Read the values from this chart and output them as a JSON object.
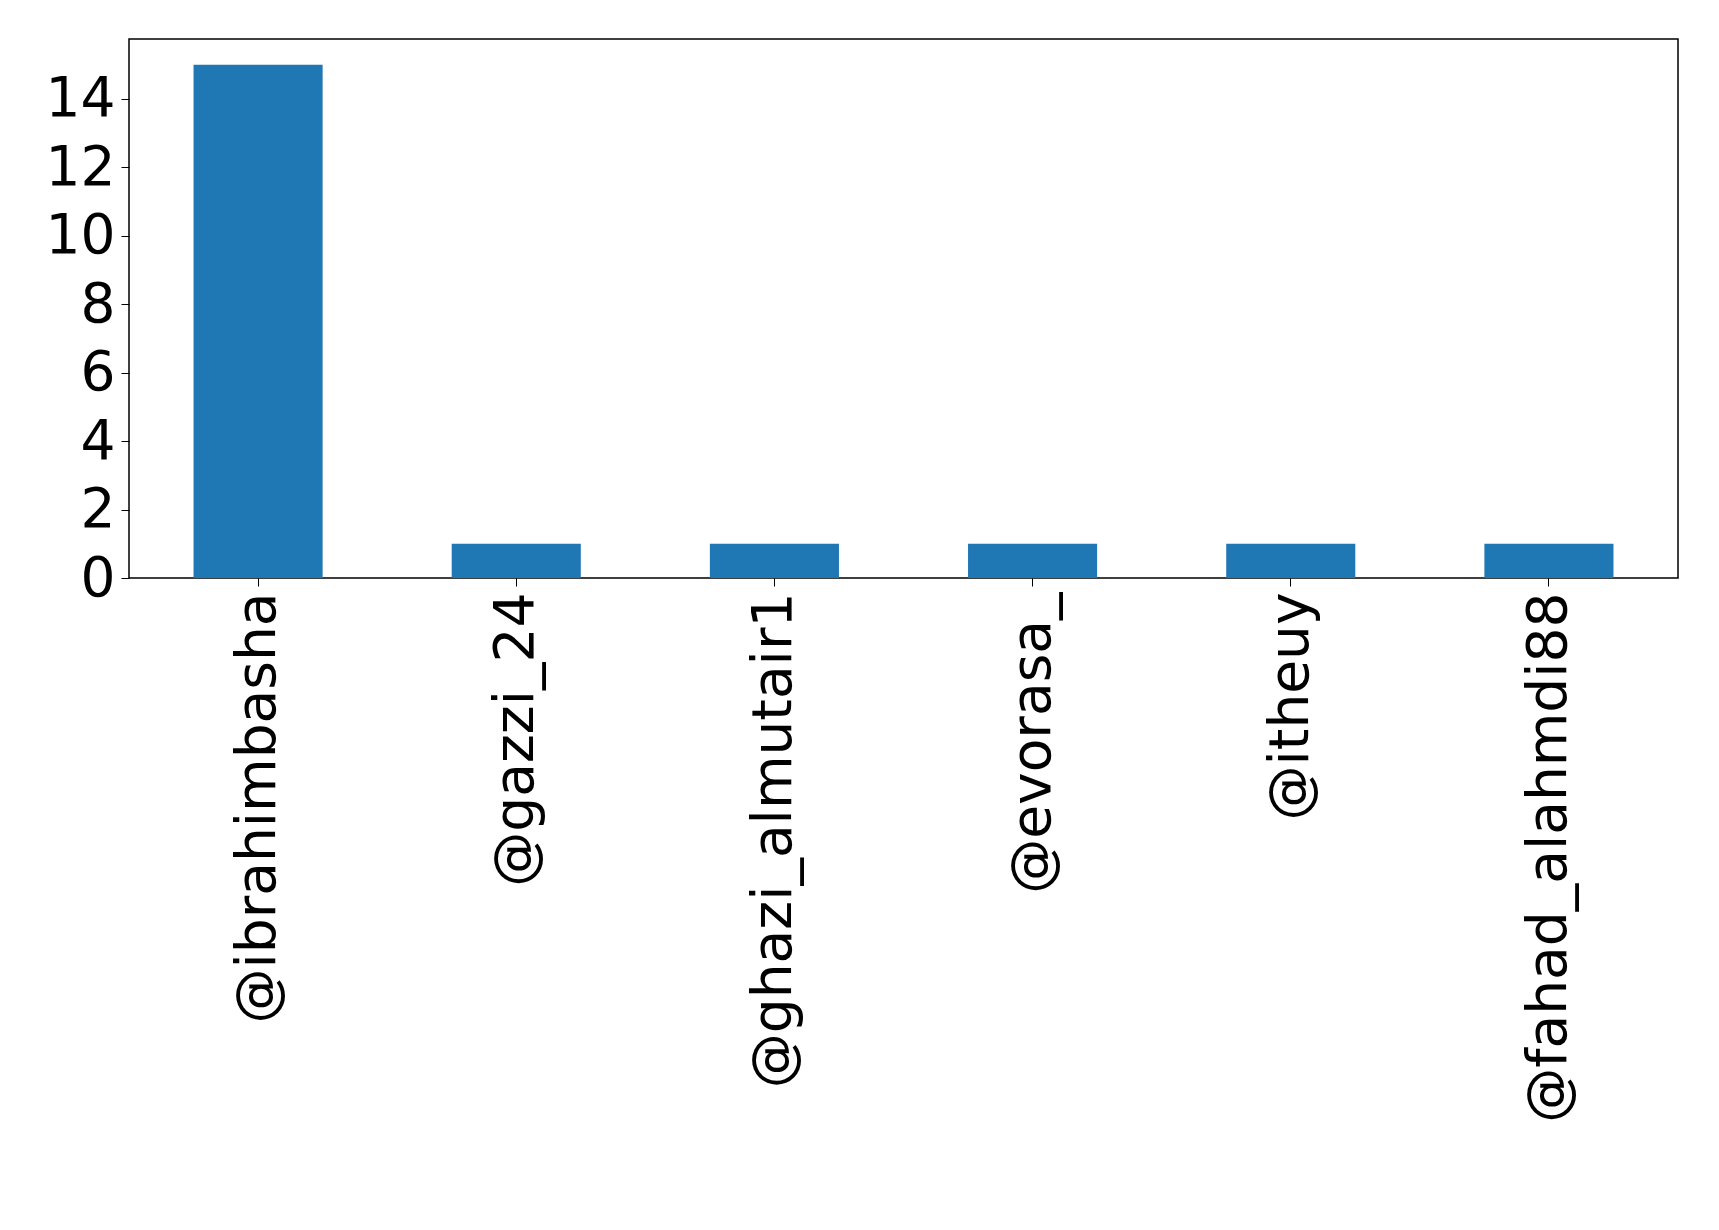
{
  "chart_data": {
    "type": "bar",
    "categories": [
      "@ibrahimbasha",
      "@gazzi_24",
      "@ghazi_almutair1",
      "@evorasa_",
      "@itheuy",
      "@fahad_alahmdi88"
    ],
    "values": [
      15,
      1,
      1,
      1,
      1,
      1
    ],
    "color": "#1f77b4",
    "ylim": [
      0,
      15.75
    ],
    "yticks": [
      0,
      2,
      4,
      6,
      8,
      10,
      12,
      14
    ],
    "grid": false
  }
}
